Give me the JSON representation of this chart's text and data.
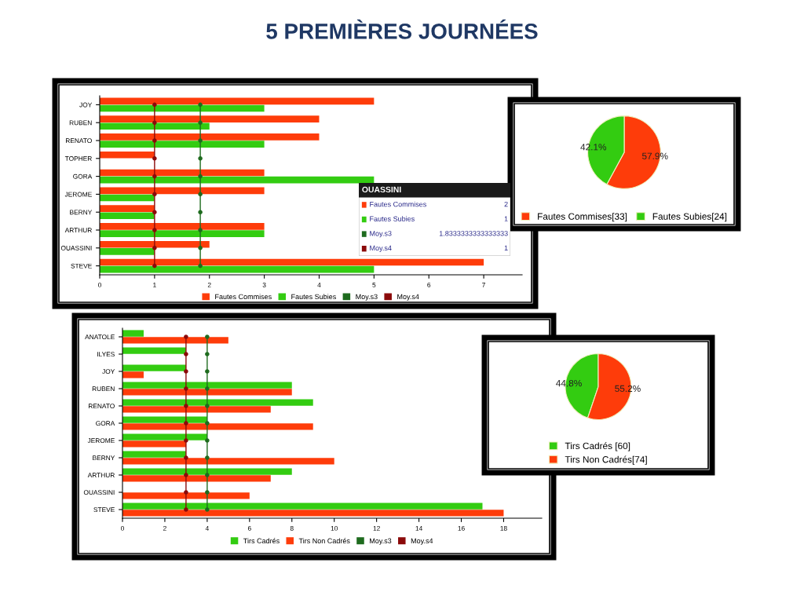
{
  "chart_data": [
    {
      "type": "bar",
      "orientation": "horizontal",
      "title": "5 PREMIÈRES JOURNÉES",
      "categories": [
        "JOY",
        "RUBEN",
        "RENATO",
        "TOPHER",
        "GORA",
        "JEROME",
        "BERNY",
        "ARTHUR",
        "OUASSINI",
        "STEVE"
      ],
      "series": [
        {
          "name": "Fautes Commises",
          "color": "#fe3c0a",
          "values": [
            5,
            4,
            4,
            1,
            3,
            3,
            1,
            3,
            2,
            7
          ]
        },
        {
          "name": "Fautes Subies",
          "color": "#33cc11",
          "values": [
            3,
            2,
            3,
            0,
            5,
            1,
            1,
            3,
            1,
            5
          ]
        },
        {
          "name": "Moy.s3",
          "type": "line",
          "color": "#1e6b1e",
          "values": [
            1.8333333333333333,
            1.8333333333333333,
            1.8333333333333333,
            1.8333333333333333,
            1.8333333333333333,
            1.8333333333333333,
            1.8333333333333333,
            1.8333333333333333,
            1.8333333333333333,
            1.8333333333333333
          ]
        },
        {
          "name": "Moy.s4",
          "type": "line",
          "color": "#8b0a0a",
          "values": [
            1,
            1,
            1,
            1,
            1,
            1,
            1,
            1,
            1,
            1
          ]
        }
      ],
      "xlim": [
        0,
        7.7
      ],
      "xticks": [
        0,
        1,
        2,
        3,
        4,
        5,
        6,
        7
      ],
      "grid": false,
      "legend": "bottom",
      "marker": "circle",
      "annotations": [
        "OUASSINI",
        "Fautes Commises",
        "2",
        "Fautes Subies",
        "1",
        "Moy.s3",
        "1.8333333333333333",
        "Moy.s4",
        "1"
      ]
    },
    {
      "type": "pie",
      "categories": [
        "Fautes Commises[33]",
        "Fautes Subies[24]"
      ],
      "values": [
        57.9,
        42.1
      ],
      "value_labels": [
        "57.9%",
        "42.1%"
      ],
      "colors": [
        "#fe3c0a",
        "#33cc11"
      ],
      "legend": "bottom"
    },
    {
      "type": "bar",
      "orientation": "horizontal",
      "categories": [
        "ANATOLE",
        "ILYES",
        "JOY",
        "RUBEN",
        "RENATO",
        "GORA",
        "JEROME",
        "BERNY",
        "ARTHUR",
        "OUASSINI",
        "STEVE"
      ],
      "series": [
        {
          "name": "Tirs Cadrés",
          "color": "#33cc11",
          "values": [
            1,
            3,
            3,
            8,
            9,
            4,
            4,
            3,
            8,
            0,
            17
          ]
        },
        {
          "name": "Tirs Non Cadrés",
          "color": "#fe3c0a",
          "values": [
            5,
            0,
            1,
            8,
            7,
            9,
            3,
            10,
            7,
            6,
            18
          ]
        },
        {
          "name": "Moy.s3",
          "type": "line",
          "color": "#1e6b1e",
          "values": [
            4,
            4,
            4,
            4,
            4,
            4,
            4,
            4,
            4,
            4,
            4
          ]
        },
        {
          "name": "Moy.s4",
          "type": "line",
          "color": "#8b0a0a",
          "values": [
            3,
            3,
            3,
            3,
            3,
            3,
            3,
            3,
            3,
            3,
            3
          ]
        }
      ],
      "xlim": [
        0,
        19.8
      ],
      "xticks": [
        0,
        2,
        4,
        6,
        8,
        10,
        12,
        14,
        16,
        18
      ],
      "grid": false,
      "legend": "bottom",
      "marker": "circle"
    },
    {
      "type": "pie",
      "categories": [
        "Tirs Cadrés [60]",
        "Tirs Non Cadrés[74]"
      ],
      "values": [
        44.8,
        55.2
      ],
      "value_labels": [
        "44.8%",
        "55.2%"
      ],
      "colors": [
        "#33cc11",
        "#fe3c0a"
      ],
      "legend": "bottom"
    }
  ]
}
